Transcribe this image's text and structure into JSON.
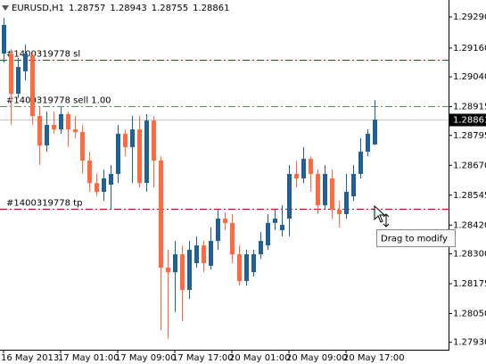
{
  "chart_data": {
    "type": "candlestick",
    "title": "EURUSD,H1",
    "categories": [
      "16 May 2013",
      null,
      null,
      null,
      null,
      null,
      null,
      null,
      "17 May 01:00",
      null,
      null,
      null,
      null,
      null,
      null,
      null,
      "17 May 09:00",
      null,
      null,
      null,
      null,
      null,
      null,
      null,
      "17 May 17:00",
      null,
      null,
      null,
      null,
      null,
      null,
      null,
      "20 May 01:00",
      null,
      null,
      null,
      null,
      null,
      null,
      null,
      "20 May 09:00",
      null,
      null,
      null,
      null,
      null,
      null,
      null,
      "20 May 17:00",
      null,
      null,
      null,
      null
    ],
    "open": [
      1.29137,
      1.29137,
      1.28969,
      1.29063,
      1.2913,
      1.28876,
      1.28753,
      1.28839,
      1.2882,
      1.28884,
      1.2882,
      1.28809,
      1.2869,
      1.28596,
      1.28559,
      1.28589,
      1.28634,
      1.28802,
      1.28746,
      1.2882,
      1.28596,
      1.28857,
      1.2869,
      1.28242,
      1.28223,
      1.28298,
      1.28149,
      1.28261,
      1.28335,
      1.2825,
      1.28354,
      1.28447,
      1.28429,
      1.28298,
      1.28186,
      1.28223,
      1.28298,
      1.28335,
      1.28429,
      1.28399,
      1.28447,
      1.28634,
      1.28615,
      1.28697,
      1.28634,
      1.28503,
      1.28615,
      1.28484,
      1.28466,
      1.2854,
      1.28634,
      1.28727,
      1.28757
    ],
    "high": [
      1.29286,
      1.29156,
      1.29119,
      1.29175,
      1.29145,
      1.28913,
      1.28895,
      1.28895,
      1.28913,
      1.28895,
      1.28876,
      1.28839,
      1.28727,
      1.28634,
      1.28652,
      1.28671,
      1.28839,
      1.2882,
      1.28876,
      1.28876,
      1.28884,
      1.28876,
      1.28708,
      1.28317,
      1.28354,
      1.28335,
      1.28354,
      1.28373,
      1.28354,
      1.2841,
      1.28484,
      1.28473,
      1.28466,
      1.28335,
      1.28317,
      1.28317,
      1.28391,
      1.28466,
      1.28484,
      1.28503,
      1.28671,
      1.2869,
      1.28746,
      1.28708,
      1.28652,
      1.28671,
      1.28652,
      1.28522,
      1.28634,
      1.28671,
      1.28783,
      1.2882,
      1.28943
    ],
    "low": [
      1.291,
      1.28839,
      1.28951,
      1.29025,
      1.28839,
      1.28671,
      1.28727,
      1.28802,
      1.28802,
      1.28746,
      1.28783,
      1.28634,
      1.28559,
      1.2854,
      1.28522,
      1.28484,
      1.28596,
      1.28708,
      1.28596,
      1.28578,
      1.28559,
      1.28578,
      1.27981,
      1.27944,
      1.28056,
      1.28018,
      1.28111,
      1.28242,
      1.28223,
      1.28234,
      1.28317,
      1.28399,
      1.28261,
      1.28167,
      1.28167,
      1.28205,
      1.28279,
      1.28317,
      1.28399,
      1.28373,
      1.28373,
      1.28578,
      1.28596,
      1.28559,
      1.28466,
      1.28484,
      1.28447,
      1.2841,
      1.28447,
      1.28522,
      1.28615,
      1.28708,
      1.28755
    ],
    "close": [
      1.29257,
      1.28969,
      1.29081,
      1.29137,
      1.28876,
      1.28753,
      1.28839,
      1.2882,
      1.28884,
      1.2882,
      1.28809,
      1.2869,
      1.28596,
      1.28559,
      1.28615,
      1.28634,
      1.28802,
      1.28746,
      1.2882,
      1.28596,
      1.28857,
      1.2869,
      1.28242,
      1.28223,
      1.28298,
      1.28149,
      1.28317,
      1.28335,
      1.28261,
      1.28354,
      1.28447,
      1.28429,
      1.28298,
      1.28186,
      1.28298,
      1.28298,
      1.28354,
      1.28429,
      1.28447,
      1.28421,
      1.28634,
      1.28615,
      1.28697,
      1.28634,
      1.28503,
      1.28634,
      1.28484,
      1.28466,
      1.28559,
      1.28634,
      1.28727,
      1.28802,
      1.28861
    ],
    "up_color": "#225f92",
    "down_color": "#ff6a40",
    "ylim": [
      1.27899,
      1.29361
    ],
    "yticks": [
      {
        "value": 1.2929,
        "label": "1.29290"
      },
      {
        "value": 1.2916,
        "label": "1.29160"
      },
      {
        "value": 1.2904,
        "label": "1.29040"
      },
      1.28915,
      1.28795,
      {
        "value": 1.2867,
        "label": "1.28670"
      },
      1.28545,
      {
        "value": 1.2842,
        "label": "1.28420"
      },
      {
        "value": 1.283,
        "label": "1.28300"
      },
      1.28175,
      {
        "value": 1.2805,
        "label": "1.28050"
      },
      {
        "value": 1.2793,
        "label": "1.27930"
      }
    ],
    "levels": [
      {
        "label": "#1400319778 sl",
        "value": 1.29111,
        "color": "#cc0000"
      },
      {
        "label": "#1400319778 sell 1.00",
        "value": 1.28917,
        "color": "#33aa33"
      },
      {
        "label": "#1400319778 tp",
        "value": 1.28488,
        "color": "#cc0000"
      }
    ],
    "tooltip": "Drag to modify"
  }
}
